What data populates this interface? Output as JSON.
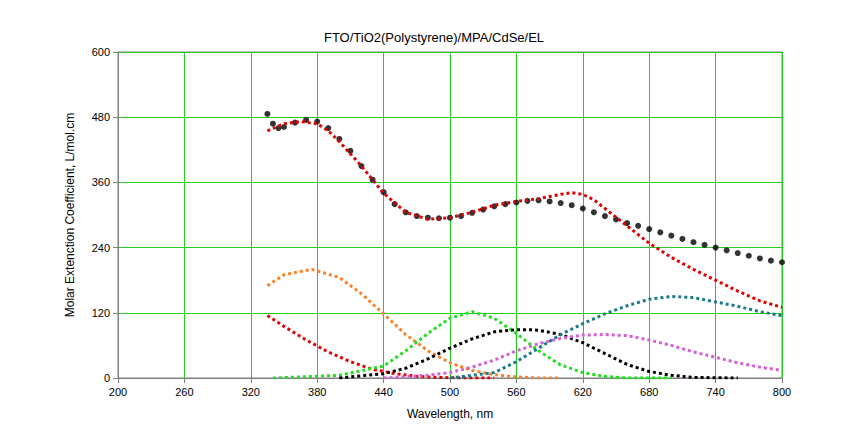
{
  "chart_data": {
    "type": "line",
    "title": "FTO/TiO2(Polystyrene)/MPA/CdSe/EL",
    "x_label": "Wavelength, nm",
    "y_label": "Molar Extenction Coefficient, L/mol.cm",
    "xlim": [
      200,
      800
    ],
    "xticks": [
      200,
      260,
      320,
      380,
      440,
      500,
      560,
      620,
      680,
      740,
      800
    ],
    "ylim": [
      0,
      600
    ],
    "yticks": [
      0,
      120,
      240,
      360,
      480,
      600
    ],
    "grid": true,
    "series": [
      {
        "type": "scatter",
        "color": "#000000",
        "marker": "circle",
        "x": [
          335,
          340,
          345,
          350,
          360,
          370,
          380,
          390,
          400,
          410,
          420,
          430,
          440,
          450,
          460,
          470,
          480,
          490,
          500,
          510,
          520,
          530,
          540,
          550,
          560,
          570,
          580,
          590,
          600,
          610,
          620,
          630,
          640,
          650,
          660,
          670,
          680,
          690,
          700,
          710,
          720,
          730,
          740,
          750,
          760,
          770,
          780,
          790,
          800
        ],
        "values": [
          486,
          468,
          460,
          462,
          470,
          475,
          472,
          460,
          440,
          418,
          390,
          365,
          342,
          320,
          305,
          298,
          295,
          294,
          295,
          298,
          304,
          310,
          316,
          320,
          323,
          326,
          327,
          325,
          322,
          318,
          312,
          305,
          298,
          292,
          285,
          280,
          274,
          268,
          262,
          256,
          250,
          245,
          240,
          235,
          230,
          225,
          220,
          216,
          213
        ]
      },
      {
        "type": "line",
        "color": "#e00000",
        "line_style": "dotted",
        "x": [
          335,
          350,
          365,
          380,
          390,
          400,
          420,
          440,
          460,
          480,
          500,
          520,
          540,
          560,
          580,
          600,
          610,
          620,
          630,
          640,
          660,
          680,
          700,
          720,
          740,
          760,
          780,
          800
        ],
        "values": [
          455,
          468,
          472,
          468,
          455,
          435,
          390,
          340,
          305,
          292,
          295,
          305,
          318,
          325,
          330,
          338,
          341,
          338,
          328,
          312,
          280,
          248,
          222,
          200,
          180,
          160,
          142,
          130
        ]
      },
      {
        "type": "line",
        "color": "#ff7f27",
        "line_style": "dotted",
        "x": [
          335,
          350,
          375,
          400,
          420,
          440,
          460,
          480,
          500,
          520,
          540,
          560,
          580,
          600
        ],
        "values": [
          170,
          190,
          200,
          185,
          155,
          118,
          80,
          50,
          28,
          14,
          6,
          2,
          0,
          0
        ]
      },
      {
        "type": "line",
        "color": "#e00000",
        "line_style": "dotted",
        "x": [
          335,
          350,
          370,
          390,
          410,
          430,
          450,
          470,
          490,
          510,
          540
        ],
        "values": [
          115,
          95,
          70,
          48,
          30,
          16,
          8,
          3,
          1,
          0,
          0
        ]
      },
      {
        "type": "line",
        "color": "#22dd22",
        "line_style": "dotted",
        "x": [
          340,
          400,
          440,
          460,
          480,
          500,
          520,
          540,
          560,
          580,
          600,
          620,
          640,
          660,
          700
        ],
        "values": [
          0,
          5,
          22,
          50,
          82,
          110,
          122,
          110,
          82,
          50,
          24,
          10,
          3,
          0,
          0
        ]
      },
      {
        "type": "line",
        "color": "#000000",
        "line_style": "dotted",
        "x": [
          400,
          440,
          460,
          480,
          500,
          520,
          540,
          560,
          570,
          580,
          600,
          620,
          640,
          660,
          680,
          700,
          720,
          760
        ],
        "values": [
          0,
          8,
          18,
          35,
          55,
          72,
          85,
          89,
          89,
          88,
          80,
          65,
          45,
          25,
          12,
          5,
          1,
          0
        ]
      },
      {
        "type": "line",
        "color": "#d65fd6",
        "line_style": "dotted",
        "x": [
          440,
          480,
          500,
          520,
          540,
          560,
          580,
          600,
          620,
          640,
          660,
          680,
          700,
          720,
          740,
          760,
          780,
          800
        ],
        "values": [
          0,
          5,
          10,
          20,
          33,
          50,
          63,
          73,
          79,
          80,
          78,
          70,
          60,
          48,
          38,
          28,
          20,
          14
        ]
      },
      {
        "type": "line",
        "color": "#1a7a8a",
        "line_style": "dotted",
        "x": [
          500,
          540,
          560,
          580,
          600,
          620,
          640,
          660,
          680,
          700,
          720,
          740,
          760,
          780,
          800
        ],
        "values": [
          0,
          10,
          30,
          55,
          80,
          100,
          118,
          133,
          145,
          150,
          148,
          140,
          132,
          122,
          115
        ]
      }
    ]
  }
}
